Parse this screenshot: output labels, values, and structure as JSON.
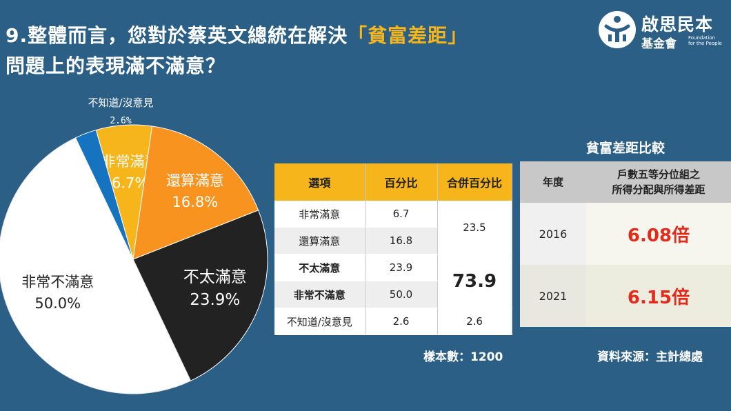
{
  "title": {
    "line1_a": "9.整體而言，您對於蔡英文總統在解決",
    "line1_hl": "「貧富差距」",
    "line2": "問題上的表現滿不滿意？"
  },
  "logo": {
    "name": "啟思民本",
    "sub": "基金會",
    "en_1": "Foundation",
    "en_2": "for the People"
  },
  "chart_data": {
    "type": "pie",
    "slices": [
      {
        "label": "非常滿意",
        "value": 6.7,
        "text": "6.7%",
        "color": "#f6b51b"
      },
      {
        "label": "還算滿意",
        "value": 16.8,
        "text": "16.8%",
        "color": "#f7931e"
      },
      {
        "label": "不太滿意",
        "value": 23.9,
        "text": "23.9%",
        "color": "#222222"
      },
      {
        "label": "非常不滿意",
        "value": 50.0,
        "text": "50.0%",
        "color": "#ffffff"
      },
      {
        "label": "不知道/沒意見",
        "value": 2.6,
        "text": "2.6%",
        "color": "#1673c0"
      }
    ]
  },
  "survey_table": {
    "headers": [
      "選項",
      "百分比",
      "合併百分比"
    ],
    "rows": [
      {
        "option": "非常滿意",
        "percent": "6.7"
      },
      {
        "option": "還算滿意",
        "percent": "16.8"
      },
      {
        "option": "不太滿意",
        "percent": "23.9"
      },
      {
        "option": "非常不滿意",
        "percent": "50.0"
      },
      {
        "option": "不知道/沒意見",
        "percent": "2.6"
      }
    ],
    "combined_satisfied": "23.5",
    "combined_unsatisfied": "73.9",
    "combined_unknown": "2.6"
  },
  "sample": "樣本數：1200",
  "comparison": {
    "title": "貧富差距比較",
    "header_year": "年度",
    "header_desc_1": "戶數五等分位組之",
    "header_desc_2": "所得分配與所得差距",
    "rows": [
      {
        "year": "2016",
        "value": "6.08倍"
      },
      {
        "year": "2021",
        "value": "6.15倍"
      }
    ]
  },
  "source": "資料來源：主計總處"
}
